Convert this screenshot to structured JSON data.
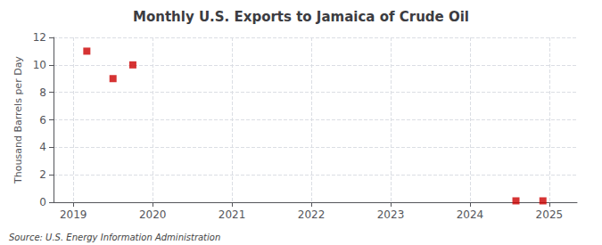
{
  "chart_data": {
    "type": "scatter",
    "title": "Monthly U.S. Exports to Jamaica of Crude Oil",
    "ylabel": "Thousand Barrels per Day",
    "annotation": "Source: U.S. Energy Information Administration",
    "x": [
      2019.17,
      2019.5,
      2019.75,
      2024.58,
      2024.92
    ],
    "values": [
      11.0,
      9.0,
      10.0,
      0.1,
      0.1
    ],
    "color": "#cc0000",
    "marker": "square",
    "xlim": [
      2018.75,
      2025.35
    ],
    "xticks": [
      2019,
      2020,
      2021,
      2022,
      2023,
      2024,
      2025
    ],
    "ylim": [
      0,
      12
    ],
    "yticks": [
      0,
      2,
      4,
      6,
      8,
      10,
      12
    ],
    "grid": true
  }
}
